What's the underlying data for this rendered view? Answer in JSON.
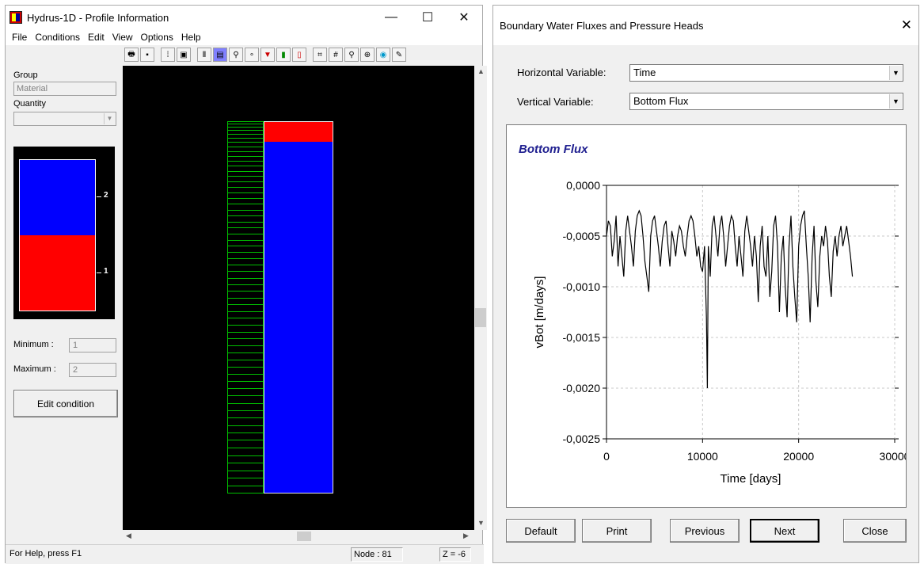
{
  "left_window": {
    "title": "Hydrus-1D - Profile Information",
    "controls": {
      "minimize": "—",
      "maximize": "☐",
      "close": "✕"
    },
    "menu": [
      "File",
      "Conditions",
      "Edit",
      "View",
      "Options",
      "Help"
    ],
    "panel": {
      "group_label": "Group",
      "group_value": "Material",
      "quantity_label": "Quantity",
      "quantity_value": "",
      "legend_labels": [
        "2",
        "1"
      ],
      "minimum_label": "Minimum   :",
      "minimum_value": "1",
      "maximum_label": "Maximum  :",
      "maximum_value": "2",
      "edit_button": "Edit condition"
    },
    "toolbar_icons": [
      "print-icon",
      "save-icon",
      "grid-dots-icon",
      "frame-icon",
      "profile-icon",
      "material-distribution-icon",
      "root-icon",
      "observation-nodes-icon",
      "pressure-head-icon",
      "color-scale-icon",
      "scale-bar-icon",
      "zoom-extents-icon",
      "grid-icon",
      "zoom-icon",
      "zoom-in-icon",
      "zoom-window-icon",
      "edit-pen-icon"
    ],
    "profile": {
      "node_lines": 60,
      "layer_top_fraction": 0.055,
      "colors": {
        "top_layer": "#ff0000",
        "bottom_layer": "#0000ff",
        "nodes": "#00c000"
      }
    },
    "status": {
      "help": "For Help, press F1",
      "node": "Node : 81",
      "z": "Z = -6"
    }
  },
  "dialog": {
    "title": "Boundary Water Fluxes and Pressure Heads",
    "close": "✕",
    "horizontal_label": "Horizontal Variable:",
    "horizontal_value": "Time",
    "vertical_label": "Vertical Variable:",
    "vertical_value": "Bottom Flux",
    "buttons": {
      "default": "Default",
      "print": "Print",
      "previous": "Previous",
      "next": "Next",
      "close": "Close"
    }
  },
  "chart_data": {
    "type": "line",
    "title": "Bottom Flux",
    "xlabel": "Time [days]",
    "ylabel": "vBot [m/days]",
    "xlim": [
      0,
      30000
    ],
    "ylim": [
      -0.0025,
      0.0
    ],
    "xticks": [
      0,
      10000,
      20000,
      30000
    ],
    "xtick_labels": [
      "0",
      "10000",
      "20000",
      "30000"
    ],
    "yticks": [
      0.0,
      -0.0005,
      -0.001,
      -0.0015,
      -0.002,
      -0.0025
    ],
    "ytick_labels": [
      "0,0000",
      "-0,0005",
      "-0,0010",
      "-0,0015",
      "-0,0020",
      "-0,0025"
    ],
    "grid": true,
    "series": [
      {
        "color": "#000000",
        "x": [
          0,
          200,
          400,
          600,
          800,
          1000,
          1200,
          1400,
          1600,
          1800,
          2000,
          2200,
          2400,
          2600,
          2800,
          3000,
          3200,
          3400,
          3600,
          3800,
          4000,
          4200,
          4400,
          4600,
          4800,
          5000,
          5200,
          5400,
          5600,
          5800,
          6000,
          6200,
          6400,
          6600,
          6800,
          7000,
          7200,
          7400,
          7600,
          7800,
          8000,
          8200,
          8400,
          8600,
          8800,
          9000,
          9200,
          9400,
          9600,
          9800,
          10000,
          10200,
          10400,
          10500,
          10600,
          10800,
          11000,
          11200,
          11400,
          11600,
          11800,
          12000,
          12200,
          12400,
          12600,
          12800,
          13000,
          13200,
          13400,
          13600,
          13800,
          14000,
          14200,
          14400,
          14600,
          14800,
          15000,
          15200,
          15400,
          15600,
          15800,
          16000,
          16200,
          16400,
          16600,
          16800,
          17000,
          17200,
          17400,
          17600,
          17800,
          18000,
          18200,
          18400,
          18600,
          18800,
          19000,
          19200,
          19400,
          19600,
          19800,
          20000,
          20200,
          20400,
          20600,
          20800,
          21000,
          21200,
          21400,
          21600,
          21800,
          22000,
          22200,
          22400,
          22600,
          22800,
          23000,
          23200,
          23400,
          23600,
          23800,
          24000,
          24200,
          24400,
          24600,
          24800,
          25000,
          25200,
          25400,
          25600
        ],
        "y": [
          -0.0005,
          -0.00035,
          -0.0004,
          -0.0007,
          -0.00055,
          -0.0003,
          -0.0008,
          -0.0005,
          -0.0007,
          -0.0009,
          -0.00045,
          -0.0003,
          -0.00045,
          -0.0006,
          -0.0008,
          -0.00045,
          -0.0003,
          -0.00025,
          -0.0003,
          -0.0005,
          -0.00075,
          -0.0009,
          -0.00105,
          -0.0005,
          -0.00035,
          -0.0003,
          -0.00045,
          -0.0006,
          -0.0008,
          -0.00055,
          -0.0004,
          -0.00035,
          -0.0006,
          -0.0008,
          -0.00045,
          -0.00055,
          -0.0007,
          -0.0005,
          -0.0004,
          -0.00045,
          -0.0006,
          -0.0007,
          -0.0005,
          -0.00035,
          -0.0003,
          -0.00035,
          -0.0005,
          -0.0007,
          -0.0006,
          -0.0008,
          -0.00085,
          -0.0006,
          -0.0013,
          -0.002,
          -0.0006,
          -0.0009,
          -0.0004,
          -0.0003,
          -0.0005,
          -0.0007,
          -0.0004,
          -0.0003,
          -0.0005,
          -0.0008,
          -0.0006,
          -0.0004,
          -0.0003,
          -0.00035,
          -0.0006,
          -0.0008,
          -0.0005,
          -0.0007,
          -0.0009,
          -0.00045,
          -0.0003,
          -0.00045,
          -0.0006,
          -0.0008,
          -0.0005,
          -0.0007,
          -0.00115,
          -0.0006,
          -0.0004,
          -0.0008,
          -0.0009,
          -0.0005,
          -0.0011,
          -0.00085,
          -0.0004,
          -0.0003,
          -0.0006,
          -0.00125,
          -0.0007,
          -0.0005,
          -0.001,
          -0.0013,
          -0.0006,
          -0.0003,
          -0.0008,
          -0.0011,
          -0.00135,
          -0.0006,
          -0.0004,
          -0.0003,
          -0.00025,
          -0.0006,
          -0.0009,
          -0.00135,
          -0.0007,
          -0.0004,
          -0.00095,
          -0.0012,
          -0.0007,
          -0.0005,
          -0.0006,
          -0.0004,
          -0.00055,
          -0.0009,
          -0.0011,
          -0.00065,
          -0.0005,
          -0.0007,
          -0.0005,
          -0.0004,
          -0.0006,
          -0.0005,
          -0.0004,
          -0.00055,
          -0.0007,
          -0.0009
        ]
      }
    ]
  }
}
